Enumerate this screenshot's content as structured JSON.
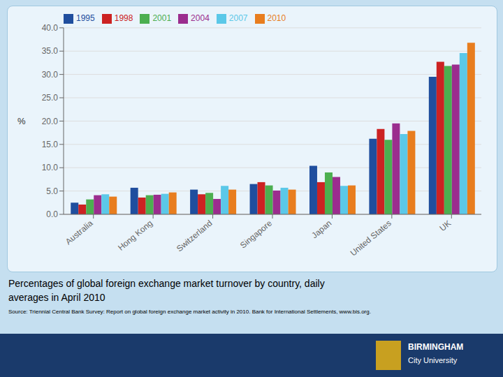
{
  "chart_data": {
    "type": "bar",
    "title": "Percentages of global foreign exchange market turnover by country, daily",
    "subtitle": "averages in April 2010",
    "annotations": [
      "Source: Triennial Central Bank Survey: Report on global foreign exchange market activity in 2010. Bank for International Settlements, www.bis.org.",
      "BIRMINGHAM",
      "City University"
    ],
    "categories": [
      "Australia",
      "Hong Kong",
      "Switzerland",
      "Singapore",
      "Japan",
      "United States",
      "UK"
    ],
    "series": [
      {
        "name": "1995",
        "color": "#1f4e9e",
        "values": [
          2.5,
          5.7,
          5.3,
          6.5,
          10.4,
          16.2,
          29.5
        ]
      },
      {
        "name": "1998",
        "color": "#cc2222",
        "values": [
          2.1,
          3.6,
          4.3,
          6.9,
          6.9,
          18.3,
          32.7
        ]
      },
      {
        "name": "2001",
        "color": "#4caf50",
        "values": [
          3.2,
          4.1,
          4.6,
          6.2,
          9.0,
          16.0,
          31.8
        ]
      },
      {
        "name": "2004",
        "color": "#9b2d8e",
        "values": [
          4.1,
          4.2,
          3.3,
          5.1,
          8.0,
          19.5,
          32.1
        ]
      },
      {
        "name": "2007",
        "color": "#5bc8e8",
        "values": [
          4.3,
          4.4,
          6.1,
          5.7,
          6.1,
          17.2,
          34.6
        ]
      },
      {
        "name": "2010",
        "color": "#e87d1e",
        "values": [
          3.8,
          4.7,
          5.3,
          5.3,
          6.2,
          17.9,
          36.8
        ]
      }
    ],
    "ylabel": "%",
    "ylim": [
      0,
      40
    ],
    "yticks": [
      {
        "value": 0,
        "label": "0.0"
      },
      {
        "value": 5,
        "label": "5.0"
      },
      {
        "value": 10,
        "label": "10.0"
      },
      {
        "value": 15,
        "label": "15.0"
      },
      {
        "value": 20,
        "label": "20.0"
      },
      {
        "value": 25,
        "label": "25.0"
      },
      {
        "value": 30,
        "label": "30.0"
      },
      {
        "value": 35,
        "label": "35.0"
      },
      {
        "value": 40,
        "label": "40.0"
      }
    ],
    "grid": true,
    "legend": "upper left"
  }
}
